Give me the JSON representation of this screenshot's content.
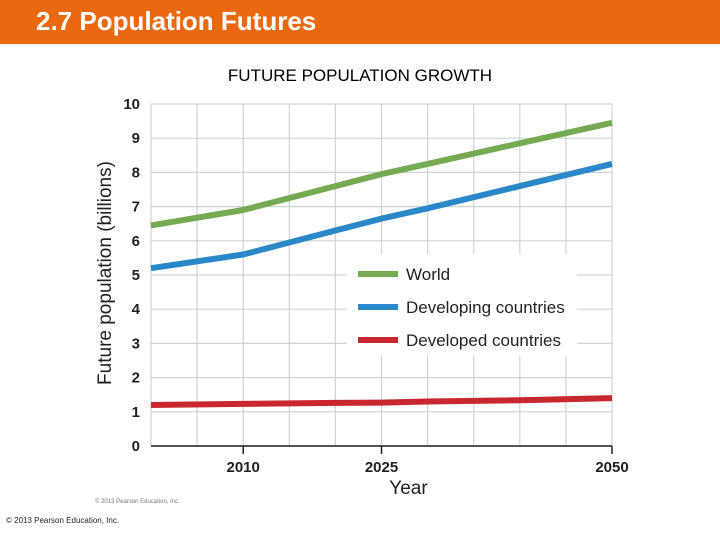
{
  "header": {
    "title": "2.7 Population Futures"
  },
  "footer": {
    "copyright": "© 2013 Pearson Education, Inc."
  },
  "colors": {
    "header_bg": "#e8690f",
    "world": "#74aa52",
    "developing": "#2a87c8",
    "developed": "#c8282d",
    "grid": "#d0d2d3"
  },
  "chart_data": {
    "type": "line",
    "title": "FUTURE POPULATION GROWTH",
    "xlabel": "Year",
    "ylabel": "Future population (billions)",
    "credit": "© 2013 Pearson Education, Inc.",
    "xlim": [
      2000,
      2050
    ],
    "ylim": [
      0,
      10
    ],
    "x_ticks": [
      2010,
      2025,
      2050
    ],
    "y_ticks": [
      0,
      1,
      2,
      3,
      4,
      5,
      6,
      7,
      8,
      9,
      10
    ],
    "grid": true,
    "legend_position": "center-right",
    "series": [
      {
        "name": "World",
        "color": "#74aa52",
        "x": [
          2000,
          2010,
          2020,
          2025,
          2030,
          2040,
          2050
        ],
        "y": [
          6.45,
          6.9,
          7.6,
          7.95,
          8.25,
          8.85,
          9.45
        ]
      },
      {
        "name": "Developing countries",
        "color": "#2a87c8",
        "x": [
          2000,
          2010,
          2020,
          2025,
          2030,
          2040,
          2050
        ],
        "y": [
          5.2,
          5.6,
          6.3,
          6.65,
          6.95,
          7.6,
          8.25
        ]
      },
      {
        "name": "Developed countries",
        "color": "#c8282d",
        "x": [
          2000,
          2010,
          2020,
          2025,
          2030,
          2040,
          2050
        ],
        "y": [
          1.2,
          1.23,
          1.26,
          1.27,
          1.3,
          1.34,
          1.4
        ]
      }
    ]
  }
}
